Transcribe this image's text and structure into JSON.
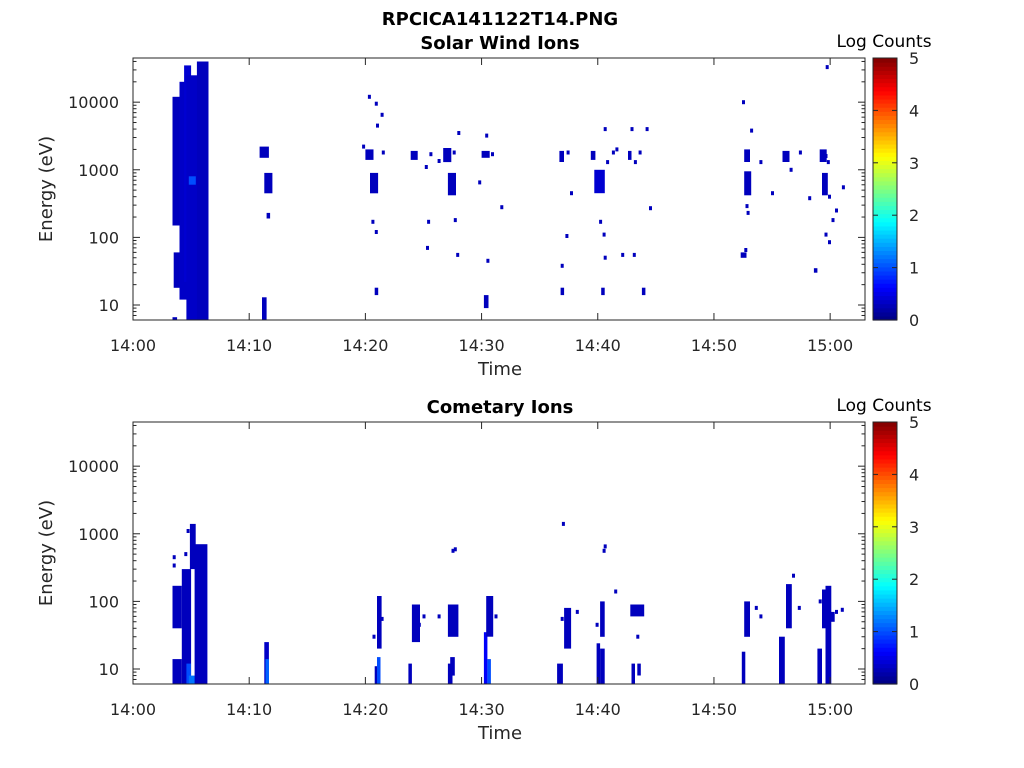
{
  "figure_title": "RPCICA141122T14.PNG",
  "chart_data": [
    {
      "type": "heatmap",
      "id": "solar",
      "title": "Solar Wind Ions",
      "xlabel": "Time",
      "ylabel": "Energy (eV)",
      "colorbar_label": "Log Counts",
      "x_ticks": [
        "14:00",
        "14:10",
        "14:20",
        "14:30",
        "14:40",
        "14:50",
        "15:00"
      ],
      "y_ticks": [
        "10",
        "100",
        "1000",
        "10000"
      ],
      "colorbar_ticks": [
        "0",
        "1",
        "2",
        "3",
        "4",
        "5"
      ],
      "xlim_minutes": [
        0,
        63
      ],
      "ylim_eV": [
        6,
        45000
      ],
      "clim": [
        0,
        5
      ],
      "grid": false,
      "colormap": "jet",
      "cells": [
        [
          3.4,
          3.8,
          6,
          6.6,
          0.3
        ],
        [
          3.4,
          4.2,
          150,
          12000,
          0.3
        ],
        [
          3.5,
          4.0,
          18,
          60,
          0.3
        ],
        [
          4.0,
          4.6,
          12,
          20000,
          0.35
        ],
        [
          4.4,
          5.0,
          22,
          35000,
          0.4
        ],
        [
          4.6,
          5.6,
          6,
          25000,
          0.35
        ],
        [
          4.8,
          5.4,
          600,
          800,
          1.0
        ],
        [
          5.5,
          6.5,
          6,
          40000,
          0.3
        ],
        [
          10.9,
          11.7,
          1500,
          2200,
          0.3
        ],
        [
          11.1,
          11.5,
          6,
          13,
          0.3
        ],
        [
          11.3,
          12.0,
          450,
          900,
          0.3
        ],
        [
          11.5,
          11.8,
          190,
          230,
          0.3
        ],
        [
          20.0,
          20.7,
          1400,
          2000,
          0.3
        ],
        [
          20.4,
          21.1,
          450,
          900,
          0.3
        ],
        [
          20.8,
          21.1,
          14,
          18,
          0.3
        ],
        [
          23.9,
          24.5,
          1400,
          1900,
          0.3
        ],
        [
          26.7,
          27.4,
          1300,
          2100,
          0.3
        ],
        [
          27.1,
          27.8,
          420,
          900,
          0.3
        ],
        [
          30.2,
          30.6,
          9,
          14,
          0.3
        ],
        [
          30.0,
          30.7,
          1500,
          1900,
          0.3
        ],
        [
          36.7,
          37.1,
          1300,
          1900,
          0.3
        ],
        [
          36.8,
          37.1,
          14,
          18,
          0.3
        ],
        [
          39.4,
          39.8,
          1400,
          1900,
          0.3
        ],
        [
          39.7,
          40.6,
          450,
          1000,
          0.4
        ],
        [
          40.3,
          40.6,
          14,
          18,
          0.3
        ],
        [
          42.6,
          42.9,
          1400,
          1900,
          0.3
        ],
        [
          43.8,
          44.1,
          14,
          18,
          0.3
        ],
        [
          52.6,
          53.1,
          1300,
          2000,
          0.3
        ],
        [
          52.6,
          53.2,
          420,
          950,
          0.3
        ],
        [
          52.3,
          52.8,
          50,
          60,
          0.3
        ],
        [
          55.9,
          56.5,
          1300,
          1900,
          0.3
        ],
        [
          59.1,
          59.7,
          1300,
          2000,
          0.3
        ],
        [
          59.3,
          59.8,
          420,
          900,
          0.3
        ],
        [
          58.6,
          58.9,
          30,
          35,
          0.3
        ]
      ],
      "points": [
        [
          20.3,
          12000
        ],
        [
          20.9,
          9500
        ],
        [
          21.4,
          6500
        ],
        [
          21.0,
          4500
        ],
        [
          19.8,
          2200
        ],
        [
          21.5,
          1800
        ],
        [
          25.6,
          1700
        ],
        [
          25.2,
          1100
        ],
        [
          28.0,
          3500
        ],
        [
          27.6,
          1800
        ],
        [
          29.8,
          650
        ],
        [
          30.4,
          3200
        ],
        [
          26.3,
          1350
        ],
        [
          27.7,
          180
        ],
        [
          30.9,
          1700
        ],
        [
          31.7,
          280
        ],
        [
          20.6,
          170
        ],
        [
          20.9,
          120
        ],
        [
          25.4,
          170
        ],
        [
          25.3,
          70
        ],
        [
          27.9,
          55
        ],
        [
          30.5,
          45
        ],
        [
          37.4,
          1800
        ],
        [
          37.7,
          450
        ],
        [
          37.3,
          105
        ],
        [
          36.9,
          38
        ],
        [
          40.6,
          4000
        ],
        [
          40.8,
          1300
        ],
        [
          40.2,
          170
        ],
        [
          40.5,
          110
        ],
        [
          40.6,
          50
        ],
        [
          41.6,
          2000
        ],
        [
          41.3,
          1800
        ],
        [
          42.1,
          55
        ],
        [
          43.1,
          55
        ],
        [
          42.9,
          4000
        ],
        [
          44.2,
          4000
        ],
        [
          43.6,
          1800
        ],
        [
          44.5,
          270
        ],
        [
          43.2,
          1300
        ],
        [
          52.5,
          10000
        ],
        [
          53.2,
          3800
        ],
        [
          52.8,
          290
        ],
        [
          52.9,
          230
        ],
        [
          52.7,
          65
        ],
        [
          54.0,
          1300
        ],
        [
          55.0,
          450
        ],
        [
          56.6,
          1000
        ],
        [
          57.4,
          1800
        ],
        [
          58.2,
          380
        ],
        [
          59.8,
          1300
        ],
        [
          59.6,
          1600
        ],
        [
          59.9,
          400
        ],
        [
          60.5,
          250
        ],
        [
          59.9,
          85
        ],
        [
          59.6,
          110
        ],
        [
          59.7,
          33000
        ],
        [
          60.2,
          180
        ],
        [
          61.1,
          550
        ]
      ]
    },
    {
      "type": "heatmap",
      "id": "comet",
      "title": "Cometary Ions",
      "xlabel": "Time",
      "ylabel": "Energy (eV)",
      "colorbar_label": "Log Counts",
      "x_ticks": [
        "14:00",
        "14:10",
        "14:20",
        "14:30",
        "14:40",
        "14:50",
        "15:00"
      ],
      "y_ticks": [
        "10",
        "100",
        "1000",
        "10000"
      ],
      "colorbar_ticks": [
        "0",
        "1",
        "2",
        "3",
        "4",
        "5"
      ],
      "xlim_minutes": [
        0,
        63
      ],
      "ylim_eV": [
        6,
        45000
      ],
      "clim": [
        0,
        5
      ],
      "grid": false,
      "colormap": "jet",
      "cells": [
        [
          3.4,
          4.2,
          6,
          14,
          0.3
        ],
        [
          3.4,
          4.2,
          40,
          170,
          0.3
        ],
        [
          4.2,
          5.0,
          6,
          300,
          0.3
        ],
        [
          4.6,
          5.0,
          6,
          12,
          1.0
        ],
        [
          4.8,
          5.4,
          6,
          8,
          1.2
        ],
        [
          4.9,
          5.4,
          300,
          1400,
          0.3
        ],
        [
          5.3,
          6.4,
          6,
          700,
          0.3
        ],
        [
          11.3,
          11.7,
          6,
          25,
          0.35
        ],
        [
          11.4,
          11.7,
          6,
          14,
          1.1
        ],
        [
          20.8,
          21.1,
          6,
          11,
          0.3
        ],
        [
          21.0,
          21.3,
          6,
          15,
          1.0
        ],
        [
          21.0,
          21.4,
          20,
          120,
          0.3
        ],
        [
          23.7,
          24.0,
          6,
          12,
          0.3
        ],
        [
          24.0,
          24.7,
          25,
          90,
          0.3
        ],
        [
          27.1,
          27.5,
          6,
          12,
          0.3
        ],
        [
          27.3,
          27.7,
          8,
          15,
          0.3
        ],
        [
          27.1,
          28.0,
          30,
          90,
          0.3
        ],
        [
          30.2,
          30.5,
          6,
          35,
          0.6
        ],
        [
          30.5,
          30.8,
          6,
          14,
          1.0
        ],
        [
          30.4,
          31.0,
          30,
          120,
          0.3
        ],
        [
          36.5,
          37.0,
          6,
          12,
          0.3
        ],
        [
          37.1,
          37.7,
          20,
          80,
          0.3
        ],
        [
          39.9,
          40.2,
          6,
          24,
          0.3
        ],
        [
          40.2,
          40.6,
          6,
          20,
          0.3
        ],
        [
          40.2,
          40.6,
          30,
          100,
          0.3
        ],
        [
          42.9,
          43.2,
          6,
          12,
          0.3
        ],
        [
          43.4,
          43.7,
          8,
          12,
          0.3
        ],
        [
          42.8,
          44.0,
          60,
          90,
          0.3
        ],
        [
          52.4,
          52.7,
          6,
          18,
          0.3
        ],
        [
          52.6,
          53.1,
          30,
          100,
          0.3
        ],
        [
          55.6,
          56.1,
          6,
          30,
          0.3
        ],
        [
          56.2,
          56.7,
          40,
          180,
          0.3
        ],
        [
          58.9,
          59.3,
          6,
          20,
          0.3
        ],
        [
          59.3,
          59.7,
          40,
          150,
          0.3
        ],
        [
          59.6,
          60.1,
          6,
          170,
          0.3
        ],
        [
          60.0,
          60.4,
          50,
          70,
          0.3
        ]
      ],
      "points": [
        [
          3.5,
          450
        ],
        [
          3.5,
          340
        ],
        [
          4.5,
          500
        ],
        [
          4.7,
          1100
        ],
        [
          27.7,
          590
        ],
        [
          27.5,
          560
        ],
        [
          37.0,
          1400
        ],
        [
          40.6,
          650
        ],
        [
          40.5,
          560
        ],
        [
          41.5,
          140
        ],
        [
          53.6,
          80
        ],
        [
          54.0,
          60
        ],
        [
          56.8,
          240
        ],
        [
          57.3,
          80
        ],
        [
          59.1,
          100
        ],
        [
          60.5,
          70
        ],
        [
          61.0,
          75
        ],
        [
          26.3,
          60
        ],
        [
          25.0,
          60
        ],
        [
          24.6,
          45
        ],
        [
          36.9,
          55
        ],
        [
          38.2,
          70
        ],
        [
          31.2,
          60
        ],
        [
          20.7,
          30
        ],
        [
          21.4,
          55
        ],
        [
          39.9,
          45
        ],
        [
          43.4,
          30
        ]
      ]
    }
  ]
}
